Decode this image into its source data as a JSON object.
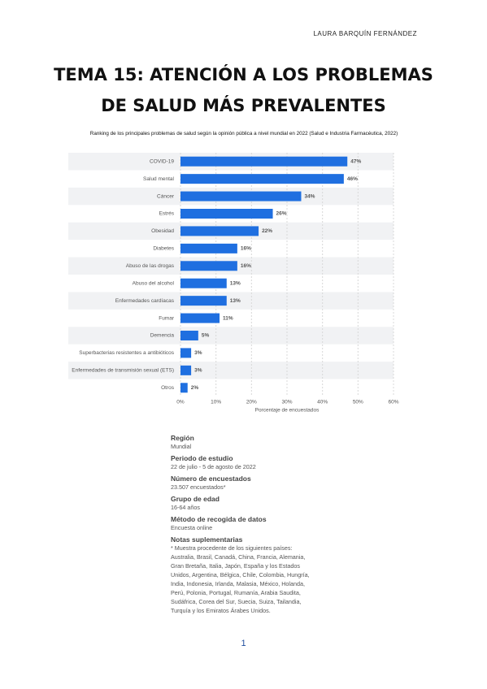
{
  "header": {
    "author": "LAURA BARQUÍN FERNÁNDEZ",
    "title_line1": "TEMA 15: ATENCIÓN A LOS PROBLEMAS",
    "title_line2": "DE SALUD MÁS PREVALENTES",
    "caption": "Ranking de los principales problemas de salud según la opinión pública a nivel mundial en 2022 (Salud e Industria Farmacéutica, 2022)"
  },
  "chart_data": {
    "type": "bar",
    "orientation": "horizontal",
    "color": "#1f6fe0",
    "categories": [
      "COVID-19",
      "Salud mental",
      "Cáncer",
      "Estrés",
      "Obesidad",
      "Diabetes",
      "Abuso de las drogas",
      "Abuso del alcohol",
      "Enfermedades cardíacas",
      "Fumar",
      "Demencia",
      "Superbacterias resistentes a antibióticos",
      "Enfermedades de transmisión sexual (ETS)",
      "Otros"
    ],
    "values": [
      47,
      46,
      34,
      26,
      22,
      16,
      16,
      13,
      13,
      11,
      5,
      3,
      3,
      2
    ],
    "value_labels": [
      "47%",
      "46%",
      "34%",
      "26%",
      "22%",
      "16%",
      "16%",
      "13%",
      "13%",
      "11%",
      "5%",
      "3%",
      "3%",
      "2%"
    ],
    "xlim": [
      0,
      60
    ],
    "xticks": [
      {
        "value": 0,
        "label": "0%"
      },
      {
        "value": 10,
        "label": "10%"
      },
      {
        "value": 20,
        "label": "20%"
      },
      {
        "value": 30,
        "label": "30%"
      },
      {
        "value": 40,
        "label": "40%"
      },
      {
        "value": 50,
        "label": "50%"
      },
      {
        "value": 60,
        "label": "60%"
      }
    ],
    "xlabel": "Porcentaje de encuestados",
    "grid": true
  },
  "info": {
    "sections": [
      {
        "heading": "Región",
        "text": "Mundial"
      },
      {
        "heading": "Periodo de estudio",
        "text": "22 de julio - 5 de agosto de 2022"
      },
      {
        "heading": "Número de encuestados",
        "text": "23.507 encuestados*"
      },
      {
        "heading": "Grupo de edad",
        "text": "16-64 años"
      },
      {
        "heading": "Método de recogida de datos",
        "text": "Encuesta online"
      },
      {
        "heading": "Notas suplementarias",
        "text": "* Muestra procedente de los siguientes países: Australia, Brasil, Canadá, China, Francia, Alemania, Gran Bretaña, Italia, Japón, España y los Estados Unidos, Argentina, Bélgica, Chile, Colombia, Hungría, India, Indonesia, Irlanda, Malasia, México, Holanda, Perú, Polonia, Portugal, Rumanía, Arabia Saudita, Sudáfrica, Corea del Sur, Suecia, Suiza, Tailandia, Turquía y los Emiratos Árabes Unidos."
      }
    ]
  },
  "footer": {
    "page": "1"
  }
}
